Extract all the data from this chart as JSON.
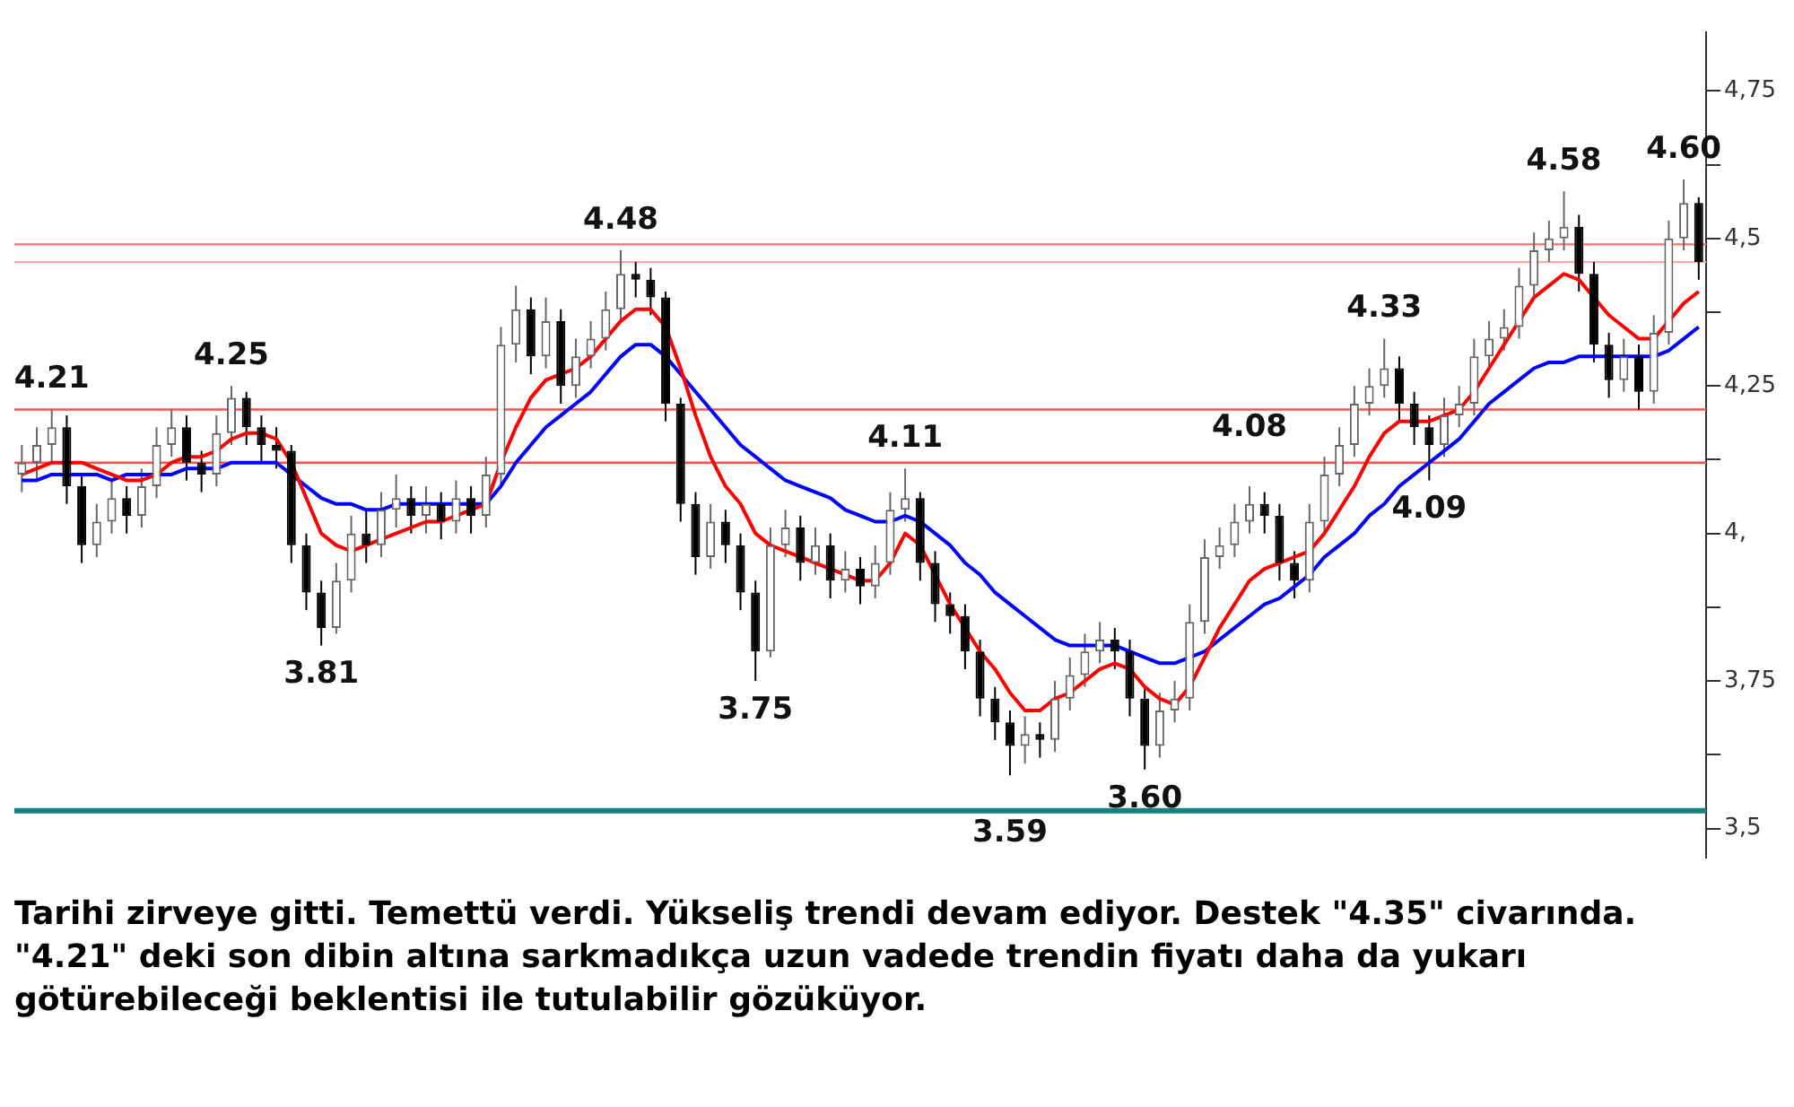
{
  "chart_data": {
    "type": "candlestick",
    "categories": [
      null,
      null,
      null,
      null,
      null,
      null,
      null,
      null,
      null,
      null,
      null,
      null,
      null,
      null,
      null,
      null,
      null,
      null,
      null,
      null,
      null,
      null,
      null,
      null,
      null,
      null,
      null,
      null,
      null,
      null,
      null,
      null,
      null,
      null,
      null,
      null,
      null,
      null,
      null,
      null,
      null,
      null,
      null,
      null,
      null,
      null,
      null,
      null,
      null,
      null,
      null,
      null,
      null,
      null,
      null,
      null,
      null,
      null,
      null,
      null,
      null,
      null,
      null,
      null,
      null,
      null,
      null,
      null,
      null,
      null,
      null,
      null,
      null,
      null,
      null,
      null,
      null,
      null,
      null,
      null,
      null,
      null,
      null,
      null,
      null,
      null,
      null,
      null,
      null,
      null,
      null,
      null,
      null,
      null,
      null,
      null,
      null,
      null,
      null,
      null,
      null,
      null,
      null,
      null,
      null,
      null,
      null,
      null,
      null,
      null,
      null,
      null,
      null
    ],
    "colors": [
      "#666666",
      "#666666",
      "#666666",
      "#000000",
      "#000000",
      "#666666",
      "#666666",
      "#000000",
      "#666666",
      "#666666",
      "#666666",
      "#000000",
      "#000000",
      "#666666",
      "#666666",
      "#000000",
      "#000000",
      "#000000",
      "#000000",
      "#000000",
      "#000000",
      "#666666",
      "#666666",
      "#000000",
      "#666666",
      "#666666",
      "#000000",
      "#666666",
      "#000000",
      "#666666",
      "#000000",
      "#666666",
      "#666666",
      "#666666",
      "#000000",
      "#666666",
      "#000000",
      "#666666",
      "#666666",
      "#666666",
      "#666666",
      "#000000",
      "#000000",
      "#000000",
      "#000000",
      "#000000",
      "#666666",
      "#000000",
      "#000000",
      "#000000",
      "#666666",
      "#666666",
      "#000000",
      "#666666",
      "#000000",
      "#666666",
      "#000000",
      "#666666",
      "#666666",
      "#666666",
      "#000000",
      "#000000",
      "#000000",
      "#000000",
      "#000000",
      "#000000",
      "#000000",
      "#666666",
      "#000000",
      "#666666",
      "#666666",
      "#666666",
      "#666666",
      "#000000",
      "#000000",
      "#000000",
      "#666666",
      "#666666",
      "#666666",
      "#666666",
      "#666666",
      "#666666",
      "#666666",
      "#000000",
      "#000000",
      "#000000",
      "#666666",
      "#666666",
      "#666666",
      "#666666",
      "#666666",
      "#666666",
      "#000000",
      "#000000",
      "#000000",
      "#666666",
      "#666666",
      "#666666",
      "#666666",
      "#666666",
      "#666666",
      "#666666",
      "#666666",
      "#666666",
      "#000000",
      "#000000",
      "#000000",
      "#666666",
      "#000000",
      "#666666",
      "#666666",
      "#666666",
      "#000000"
    ],
    "ohlc": [
      [
        4.1,
        4.15,
        4.07,
        4.12
      ],
      [
        4.12,
        4.18,
        4.09,
        4.15
      ],
      [
        4.15,
        4.21,
        4.12,
        4.18
      ],
      [
        4.18,
        4.2,
        4.05,
        4.08
      ],
      [
        4.08,
        4.1,
        3.95,
        3.98
      ],
      [
        3.98,
        4.05,
        3.96,
        4.02
      ],
      [
        4.02,
        4.09,
        4.0,
        4.06
      ],
      [
        4.06,
        4.08,
        4.0,
        4.03
      ],
      [
        4.03,
        4.11,
        4.01,
        4.08
      ],
      [
        4.08,
        4.18,
        4.06,
        4.15
      ],
      [
        4.15,
        4.21,
        4.13,
        4.18
      ],
      [
        4.18,
        4.2,
        4.09,
        4.12
      ],
      [
        4.12,
        4.14,
        4.07,
        4.1
      ],
      [
        4.1,
        4.2,
        4.08,
        4.17
      ],
      [
        4.17,
        4.25,
        4.15,
        4.23
      ],
      [
        4.23,
        4.24,
        4.15,
        4.18
      ],
      [
        4.18,
        4.2,
        4.12,
        4.15
      ],
      [
        4.15,
        4.18,
        4.11,
        4.14
      ],
      [
        4.14,
        4.15,
        3.95,
        3.98
      ],
      [
        3.98,
        4.0,
        3.87,
        3.9
      ],
      [
        3.9,
        3.92,
        3.81,
        3.84
      ],
      [
        3.84,
        3.95,
        3.83,
        3.92
      ],
      [
        3.92,
        4.03,
        3.9,
        4.0
      ],
      [
        4.0,
        4.04,
        3.95,
        3.98
      ],
      [
        3.98,
        4.07,
        3.96,
        4.04
      ],
      [
        4.04,
        4.1,
        4.01,
        4.06
      ],
      [
        4.06,
        4.08,
        4.0,
        4.03
      ],
      [
        4.03,
        4.08,
        4.0,
        4.05
      ],
      [
        4.05,
        4.07,
        3.99,
        4.02
      ],
      [
        4.02,
        4.09,
        4.0,
        4.06
      ],
      [
        4.06,
        4.08,
        4.0,
        4.03
      ],
      [
        4.03,
        4.13,
        4.01,
        4.1
      ],
      [
        4.1,
        4.35,
        4.08,
        4.32
      ],
      [
        4.32,
        4.42,
        4.29,
        4.38
      ],
      [
        4.38,
        4.4,
        4.27,
        4.3
      ],
      [
        4.3,
        4.4,
        4.28,
        4.36
      ],
      [
        4.36,
        4.38,
        4.22,
        4.25
      ],
      [
        4.25,
        4.33,
        4.23,
        4.3
      ],
      [
        4.3,
        4.36,
        4.28,
        4.33
      ],
      [
        4.33,
        4.41,
        4.31,
        4.38
      ],
      [
        4.38,
        4.48,
        4.36,
        4.44
      ],
      [
        4.44,
        4.46,
        4.4,
        4.43
      ],
      [
        4.43,
        4.45,
        4.37,
        4.4
      ],
      [
        4.4,
        4.41,
        4.19,
        4.22
      ],
      [
        4.22,
        4.23,
        4.02,
        4.05
      ],
      [
        4.05,
        4.07,
        3.93,
        3.96
      ],
      [
        3.96,
        4.05,
        3.94,
        4.02
      ],
      [
        4.02,
        4.04,
        3.95,
        3.98
      ],
      [
        3.98,
        4.0,
        3.87,
        3.9
      ],
      [
        3.9,
        3.92,
        3.75,
        3.8
      ],
      [
        3.8,
        4.01,
        3.79,
        3.98
      ],
      [
        3.98,
        4.04,
        3.96,
        4.01
      ],
      [
        4.01,
        4.03,
        3.92,
        3.95
      ],
      [
        3.95,
        4.01,
        3.93,
        3.98
      ],
      [
        3.98,
        4.0,
        3.89,
        3.92
      ],
      [
        3.92,
        3.97,
        3.9,
        3.94
      ],
      [
        3.94,
        3.96,
        3.88,
        3.91
      ],
      [
        3.91,
        3.98,
        3.89,
        3.95
      ],
      [
        3.95,
        4.07,
        3.93,
        4.04
      ],
      [
        4.04,
        4.11,
        4.02,
        4.06
      ],
      [
        4.06,
        4.07,
        3.92,
        3.95
      ],
      [
        3.95,
        3.97,
        3.85,
        3.88
      ],
      [
        3.88,
        3.9,
        3.83,
        3.86
      ],
      [
        3.86,
        3.88,
        3.77,
        3.8
      ],
      [
        3.8,
        3.82,
        3.69,
        3.72
      ],
      [
        3.72,
        3.74,
        3.65,
        3.68
      ],
      [
        3.68,
        3.7,
        3.59,
        3.64
      ],
      [
        3.64,
        3.69,
        3.61,
        3.66
      ],
      [
        3.66,
        3.68,
        3.62,
        3.65
      ],
      [
        3.65,
        3.75,
        3.63,
        3.72
      ],
      [
        3.72,
        3.79,
        3.7,
        3.76
      ],
      [
        3.76,
        3.83,
        3.74,
        3.8
      ],
      [
        3.8,
        3.85,
        3.78,
        3.82
      ],
      [
        3.82,
        3.84,
        3.77,
        3.8
      ],
      [
        3.8,
        3.82,
        3.69,
        3.72
      ],
      [
        3.72,
        3.74,
        3.6,
        3.64
      ],
      [
        3.64,
        3.73,
        3.62,
        3.7
      ],
      [
        3.7,
        3.75,
        3.68,
        3.72
      ],
      [
        3.72,
        3.88,
        3.7,
        3.85
      ],
      [
        3.85,
        3.99,
        3.83,
        3.96
      ],
      [
        3.96,
        4.01,
        3.94,
        3.98
      ],
      [
        3.98,
        4.05,
        3.96,
        4.02
      ],
      [
        4.02,
        4.08,
        4.0,
        4.05
      ],
      [
        4.05,
        4.07,
        4.0,
        4.03
      ],
      [
        4.03,
        4.05,
        3.92,
        3.95
      ],
      [
        3.95,
        3.97,
        3.89,
        3.92
      ],
      [
        3.92,
        4.05,
        3.9,
        4.02
      ],
      [
        4.02,
        4.13,
        4.0,
        4.1
      ],
      [
        4.1,
        4.18,
        4.08,
        4.15
      ],
      [
        4.15,
        4.25,
        4.13,
        4.22
      ],
      [
        4.22,
        4.28,
        4.2,
        4.25
      ],
      [
        4.25,
        4.33,
        4.23,
        4.28
      ],
      [
        4.28,
        4.3,
        4.19,
        4.22
      ],
      [
        4.22,
        4.24,
        4.15,
        4.18
      ],
      [
        4.18,
        4.2,
        4.09,
        4.15
      ],
      [
        4.15,
        4.23,
        4.13,
        4.2
      ],
      [
        4.2,
        4.25,
        4.18,
        4.22
      ],
      [
        4.22,
        4.33,
        4.2,
        4.3
      ],
      [
        4.3,
        4.36,
        4.28,
        4.33
      ],
      [
        4.33,
        4.38,
        4.31,
        4.35
      ],
      [
        4.35,
        4.45,
        4.33,
        4.42
      ],
      [
        4.42,
        4.51,
        4.4,
        4.48
      ],
      [
        4.48,
        4.53,
        4.46,
        4.5
      ],
      [
        4.5,
        4.58,
        4.48,
        4.52
      ],
      [
        4.52,
        4.54,
        4.41,
        4.44
      ],
      [
        4.44,
        4.46,
        4.29,
        4.32
      ],
      [
        4.32,
        4.34,
        4.23,
        4.26
      ],
      [
        4.26,
        4.33,
        4.24,
        4.3
      ],
      [
        4.3,
        4.32,
        4.21,
        4.24
      ],
      [
        4.24,
        4.37,
        4.22,
        4.34
      ],
      [
        4.34,
        4.53,
        4.32,
        4.5
      ],
      [
        4.5,
        4.6,
        4.48,
        4.56
      ],
      [
        4.56,
        4.57,
        4.43,
        4.46
      ]
    ],
    "series": [
      {
        "type": "line",
        "color": "#ff0000",
        "values": [
          4.1,
          4.11,
          4.12,
          4.12,
          4.12,
          4.11,
          4.1,
          4.09,
          4.09,
          4.1,
          4.12,
          4.13,
          4.13,
          4.14,
          4.16,
          4.17,
          4.17,
          4.16,
          4.12,
          4.06,
          4.0,
          3.98,
          3.97,
          3.98,
          3.99,
          4.0,
          4.01,
          4.02,
          4.02,
          4.03,
          4.04,
          4.05,
          4.12,
          4.18,
          4.23,
          4.26,
          4.27,
          4.28,
          4.3,
          4.33,
          4.36,
          4.38,
          4.38,
          4.35,
          4.28,
          4.2,
          4.13,
          4.08,
          4.05,
          4.0,
          3.98,
          3.97,
          3.96,
          3.95,
          3.94,
          3.93,
          3.92,
          3.92,
          3.95,
          4.0,
          3.98,
          3.93,
          3.88,
          3.84,
          3.8,
          3.77,
          3.73,
          3.7,
          3.7,
          3.72,
          3.73,
          3.75,
          3.77,
          3.78,
          3.77,
          3.74,
          3.72,
          3.71,
          3.74,
          3.79,
          3.84,
          3.88,
          3.92,
          3.94,
          3.95,
          3.96,
          3.97,
          4.0,
          4.04,
          4.08,
          4.13,
          4.17,
          4.19,
          4.19,
          4.19,
          4.2,
          4.21,
          4.24,
          4.28,
          4.32,
          4.36,
          4.4,
          4.42,
          4.44,
          4.43,
          4.4,
          4.37,
          4.35,
          4.33,
          4.33,
          4.36,
          4.39,
          4.41
        ]
      },
      {
        "type": "line",
        "color": "#0000ff",
        "values": [
          4.09,
          4.09,
          4.1,
          4.1,
          4.1,
          4.1,
          4.09,
          4.1,
          4.1,
          4.1,
          4.1,
          4.11,
          4.11,
          4.11,
          4.12,
          4.12,
          4.12,
          4.12,
          4.1,
          4.08,
          4.06,
          4.05,
          4.05,
          4.04,
          4.04,
          4.05,
          4.05,
          4.05,
          4.05,
          4.05,
          4.05,
          4.05,
          4.08,
          4.12,
          4.15,
          4.18,
          4.2,
          4.22,
          4.24,
          4.27,
          4.3,
          4.32,
          4.32,
          4.3,
          4.27,
          4.24,
          4.21,
          4.18,
          4.15,
          4.13,
          4.11,
          4.09,
          4.08,
          4.07,
          4.06,
          4.04,
          4.03,
          4.02,
          4.02,
          4.03,
          4.02,
          4.0,
          3.98,
          3.95,
          3.93,
          3.9,
          3.88,
          3.86,
          3.84,
          3.82,
          3.81,
          3.81,
          3.81,
          3.81,
          3.8,
          3.79,
          3.78,
          3.78,
          3.79,
          3.8,
          3.82,
          3.84,
          3.86,
          3.88,
          3.89,
          3.91,
          3.93,
          3.96,
          3.98,
          4.0,
          4.03,
          4.05,
          4.08,
          4.1,
          4.12,
          4.14,
          4.16,
          4.19,
          4.22,
          4.24,
          4.26,
          4.28,
          4.29,
          4.29,
          4.3,
          4.3,
          4.3,
          4.3,
          4.3,
          4.3,
          4.31,
          4.33,
          4.35
        ]
      }
    ],
    "ylim": [
      3.45,
      4.85
    ],
    "yticks": [
      {
        "value": 3.5,
        "label": "3,5"
      },
      {
        "value": 3.625,
        "label": null
      },
      {
        "value": 3.75,
        "label": "3,75"
      },
      {
        "value": 3.875,
        "label": null
      },
      {
        "value": 4,
        "label": "4,"
      },
      {
        "value": 4.125,
        "label": null
      },
      {
        "value": 4.25,
        "label": "4,25"
      },
      {
        "value": 4.375,
        "label": null
      },
      {
        "value": 4.5,
        "label": "4,5"
      },
      {
        "value": 4.625,
        "label": null
      },
      {
        "value": 4.75,
        "label": "4,75"
      }
    ],
    "tick_labels": "y",
    "grid": false,
    "legend": false,
    "ref_lines": [
      {
        "axis": "y",
        "value": 4.49,
        "color": "#ff7070"
      },
      {
        "axis": "y",
        "value": 4.46,
        "color": "#ffaaaa"
      },
      {
        "axis": "y",
        "value": 4.21,
        "color": "#ff5050"
      },
      {
        "axis": "y",
        "value": 4.12,
        "color": "#ff5050"
      },
      {
        "axis": "y",
        "value": 3.53,
        "color": "#1a8080"
      }
    ],
    "annotations": [
      {
        "text": "4.25",
        "y": 4.25
      },
      {
        "text": "3.81",
        "y": 3.81
      },
      {
        "text": "4.48",
        "y": 4.48
      },
      {
        "text": "3.75",
        "y": 3.75
      },
      {
        "text": "4.11",
        "y": 4.11
      },
      {
        "text": "3.59",
        "y": 3.59
      },
      {
        "text": "3.60",
        "y": 3.6
      },
      {
        "text": "4.08",
        "y": 4.08
      },
      {
        "text": "4.33",
        "y": 4.33
      },
      {
        "text": "4.09",
        "y": 4.09
      },
      {
        "text": "4.58",
        "y": 4.58
      },
      {
        "text": "4.21",
        "y": 4.21
      },
      {
        "text": "4.60",
        "y": 4.6
      },
      "Tarihi zirveye gitti. Temettü verdi. Yükseliş trendi devam ediyor. Destek \"4.35\" civarında. \"4.21\" deki son dibin altına sarkmadıkça uzun vadede trendin fiyatı daha da yukarı götürebileceği beklentisi ile tutulabilir gözüküyor."
    ]
  }
}
